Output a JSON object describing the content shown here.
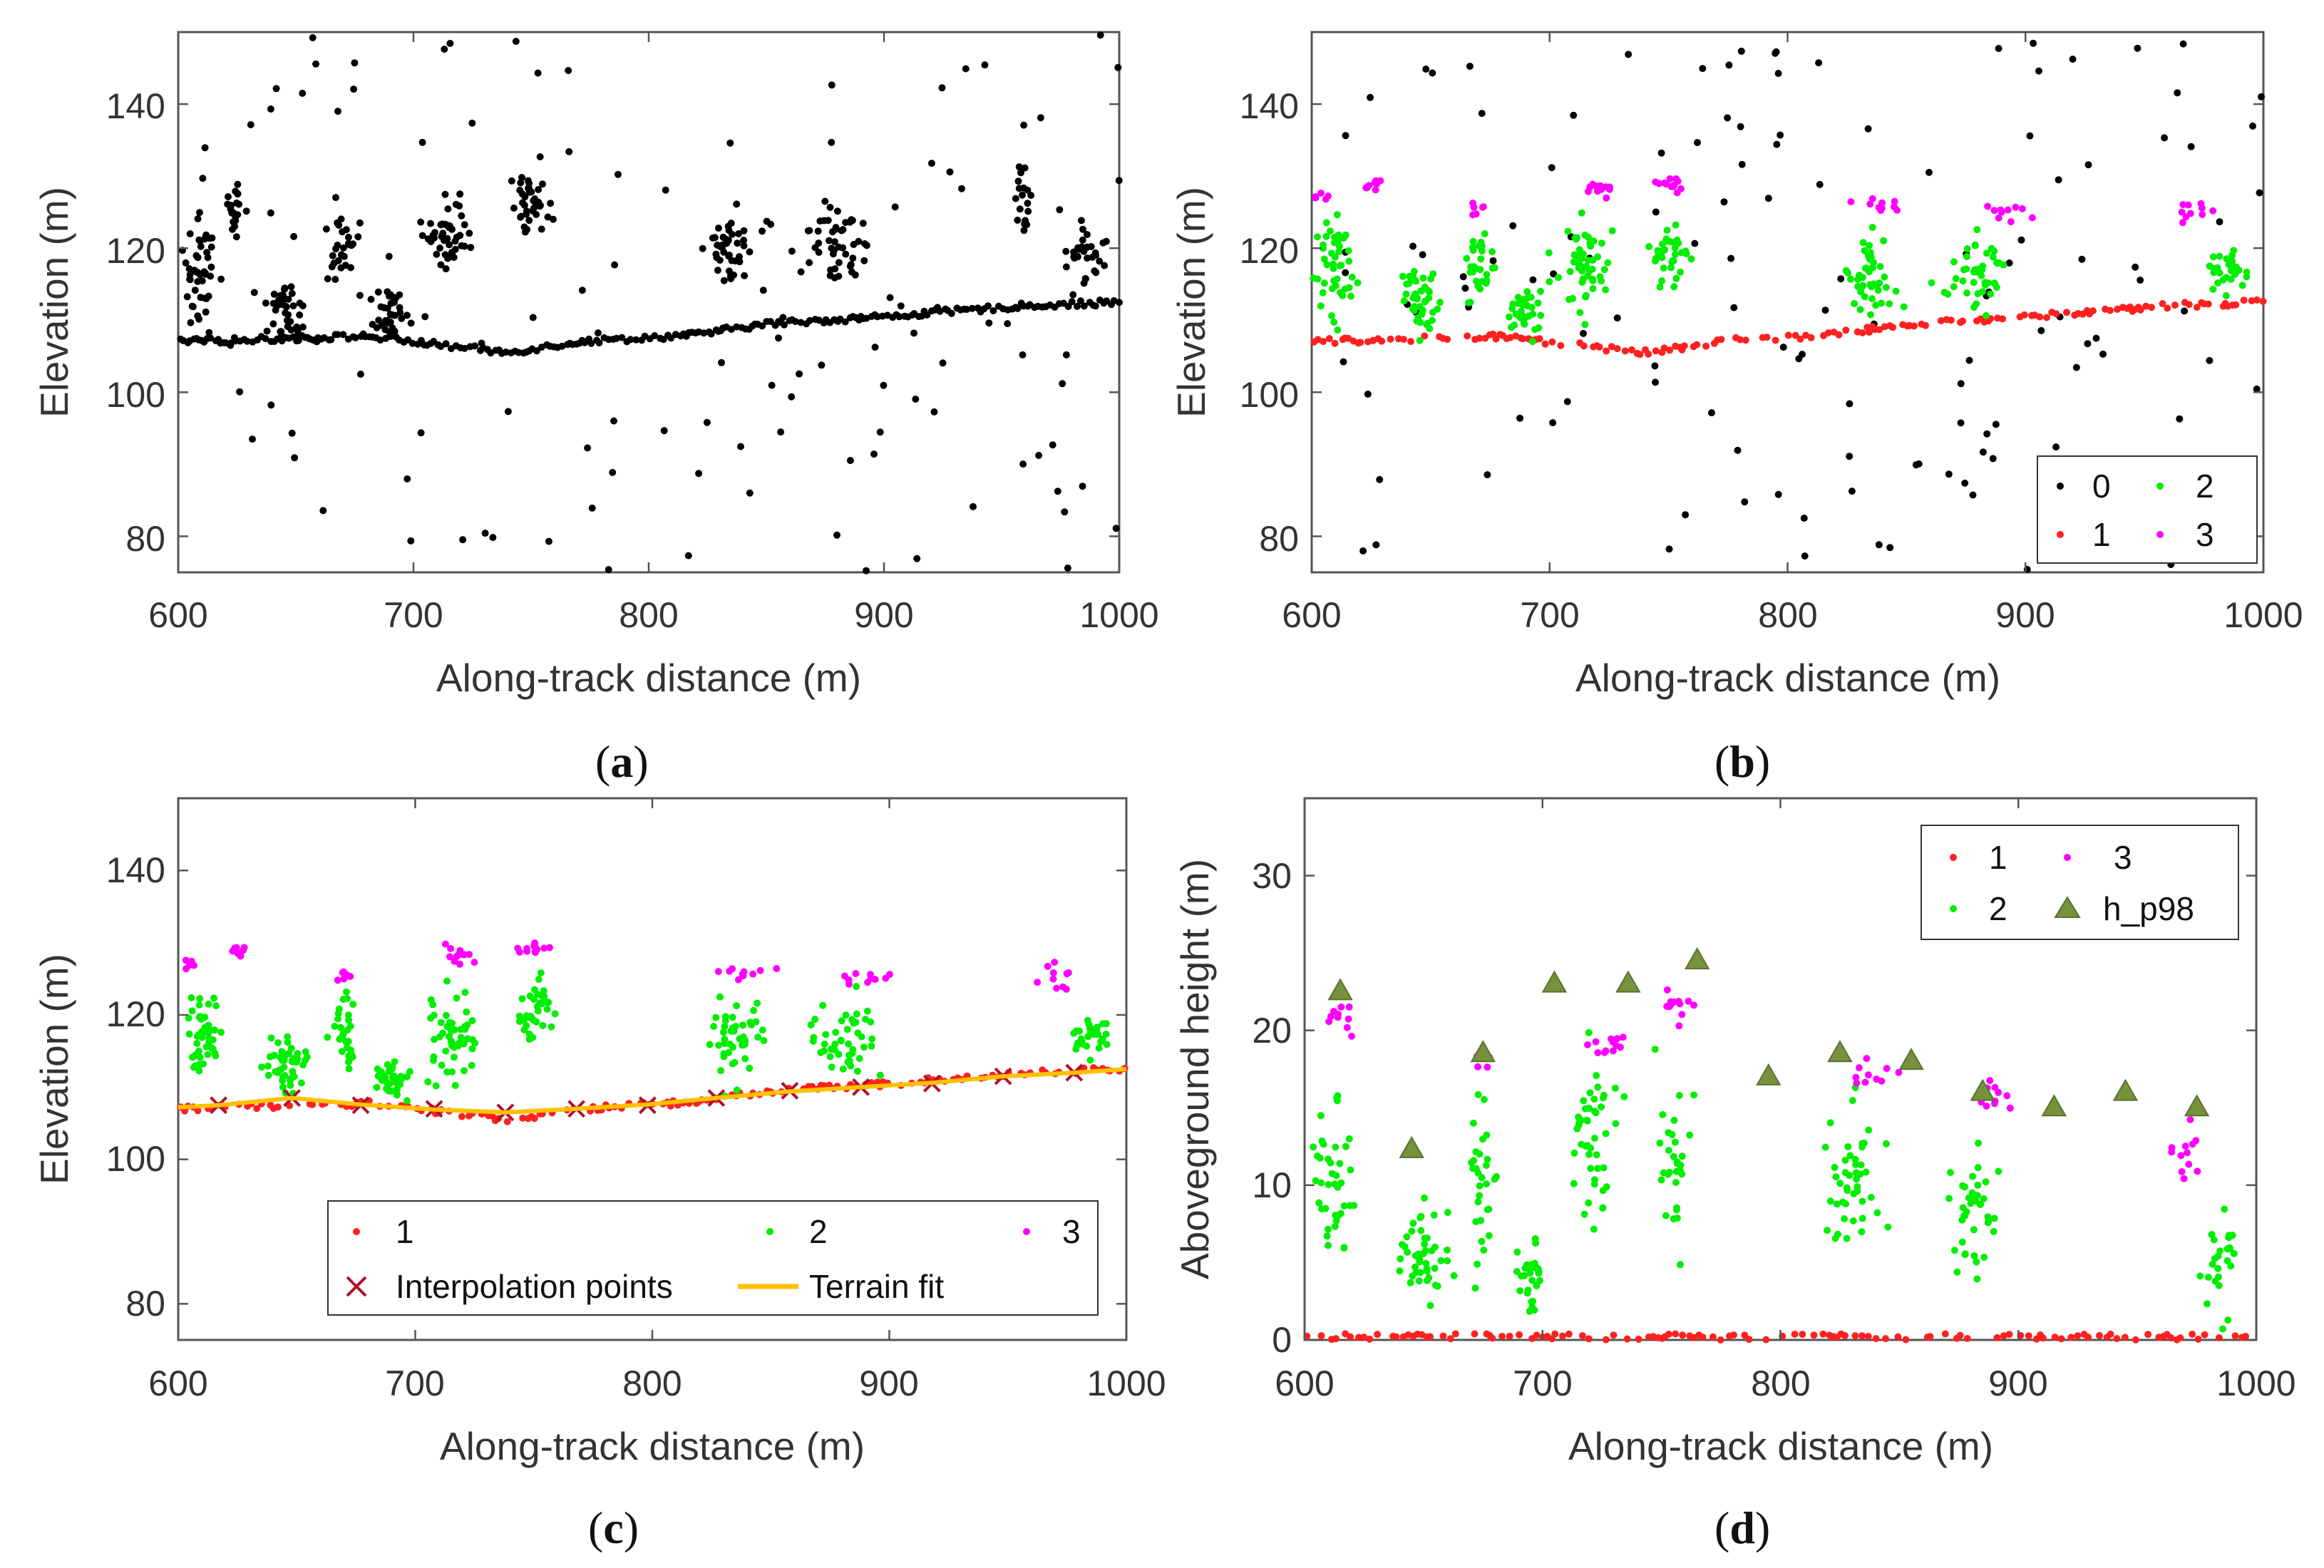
{
  "colors": {
    "class0": "#000000",
    "class1": "#ff2020",
    "class2": "#00ee00",
    "class3": "#ff00ff",
    "interp": "#b0102a",
    "terrain": "#ffc000",
    "hp98": "#76923c"
  },
  "panels": [
    {
      "id": "a",
      "label_open": "(",
      "label": "a",
      "label_close": ")",
      "xlabel": "Along-track distance (m)",
      "ylabel": "Elevation (m)",
      "xticks": [
        "600",
        "700",
        "800",
        "900",
        "1000"
      ],
      "yticks": [
        "80",
        "100",
        "120",
        "140"
      ],
      "xlim": [
        600,
        1000
      ],
      "ylim": [
        75,
        150
      ],
      "legend": null
    },
    {
      "id": "b",
      "label_open": "(",
      "label": "b",
      "label_close": ")",
      "xlabel": "Along-track distance (m)",
      "ylabel": "Elevation (m)",
      "xticks": [
        "600",
        "700",
        "800",
        "900",
        "1000"
      ],
      "yticks": [
        "80",
        "100",
        "120",
        "140"
      ],
      "xlim": [
        600,
        1000
      ],
      "ylim": [
        75,
        150
      ],
      "legend": {
        "entries": [
          "0",
          "1",
          "2",
          "3"
        ]
      }
    },
    {
      "id": "c",
      "label_open": "(",
      "label": "c",
      "label_close": ")",
      "xlabel": "Along-track distance (m)",
      "ylabel": "Elevation (m)",
      "xticks": [
        "600",
        "700",
        "800",
        "900",
        "1000"
      ],
      "yticks": [
        "80",
        "100",
        "120",
        "140"
      ],
      "xlim": [
        600,
        1000
      ],
      "ylim": [
        75,
        150
      ],
      "legend": {
        "entries": [
          "1",
          "2",
          "3",
          "Interpolation points",
          "Terrain fit"
        ]
      }
    },
    {
      "id": "d",
      "label_open": "(",
      "label": "d",
      "label_close": ")",
      "xlabel": "Along-track distance (m)",
      "ylabel": "Aboveground height (m)",
      "xticks": [
        "600",
        "700",
        "800",
        "900",
        "1000"
      ],
      "yticks": [
        "0",
        "10",
        "20",
        "30"
      ],
      "xlim": [
        600,
        1000
      ],
      "ylim": [
        0,
        35
      ],
      "legend": {
        "entries": [
          "1",
          "3",
          "2",
          "h_p98"
        ]
      }
    }
  ],
  "chart_data": [
    {
      "type": "scatter",
      "panel": "a",
      "title": "",
      "xlabel": "Along-track distance (m)",
      "ylabel": "Elevation (m)",
      "xlim": [
        600,
        1000
      ],
      "ylim": [
        75,
        150
      ],
      "series": [
        {
          "name": "photons",
          "cls": 0,
          "ground": [
            [
              600,
              107
            ],
            [
              680,
              107.8
            ],
            [
              700,
              107
            ],
            [
              740,
              105.5
            ],
            [
              770,
              107
            ],
            [
              820,
              108
            ],
            [
              850,
              109.5
            ],
            [
              900,
              110.5
            ],
            [
              960,
              112
            ],
            [
              1000,
              112.5
            ]
          ],
          "clusters": [
            [
              610,
              118,
              7,
              8,
              45
            ],
            [
              625,
              126,
              5,
              4,
              18
            ],
            [
              645,
              112,
              8,
              4,
              40
            ],
            [
              670,
              120,
              6,
              6,
              30
            ],
            [
              690,
              111,
              7,
              3,
              35
            ],
            [
              715,
              122,
              10,
              6,
              45
            ],
            [
              750,
              126,
              7,
              4,
              38
            ],
            [
              835,
              120,
              10,
              5,
              40
            ],
            [
              880,
              120,
              12,
              5,
              42
            ],
            [
              960,
              126,
              4,
              5,
              18
            ],
            [
              985,
              119,
              8,
              4,
              32
            ]
          ],
          "noise_count": 130
        }
      ]
    },
    {
      "type": "scatter",
      "panel": "b",
      "title": "",
      "xlabel": "Along-track distance (m)",
      "ylabel": "Elevation (m)",
      "xlim": [
        600,
        1000
      ],
      "ylim": [
        75,
        150
      ],
      "series": [
        {
          "name": "0",
          "cls": 0,
          "noise_count": 130
        },
        {
          "name": "1",
          "cls": 1,
          "ground": [
            [
              600,
              107
            ],
            [
              680,
              107.8
            ],
            [
              700,
              107
            ],
            [
              740,
              105.5
            ],
            [
              770,
              107
            ],
            [
              820,
              108
            ],
            [
              850,
              109.5
            ],
            [
              900,
              110.5
            ],
            [
              960,
              112
            ],
            [
              1000,
              112.5
            ]
          ]
        },
        {
          "name": "2",
          "cls": 2,
          "clusters": [
            [
              610,
              117,
              7,
              6,
              45
            ],
            [
              645,
              113,
              8,
              4,
              45
            ],
            [
              670,
              118,
              6,
              5,
              30
            ],
            [
              690,
              111,
              7,
              3,
              35
            ],
            [
              715,
              118,
              10,
              6,
              50
            ],
            [
              750,
              120,
              7,
              5,
              35
            ],
            [
              835,
              117,
              10,
              5,
              45
            ],
            [
              880,
              117,
              12,
              5,
              45
            ],
            [
              985,
              117,
              8,
              3,
              30
            ]
          ]
        },
        {
          "name": "3",
          "cls": 3,
          "clusters": [
            [
              605,
              127,
              3,
              1,
              6
            ],
            [
              625,
              129,
              4,
              1,
              8
            ],
            [
              670,
              125.5,
              4,
              1,
              6
            ],
            [
              720,
              128,
              8,
              1.5,
              12
            ],
            [
              750,
              129,
              6,
              1,
              12
            ],
            [
              840,
              126,
              10,
              1.2,
              10
            ],
            [
              890,
              125,
              10,
              1,
              10
            ],
            [
              970,
              125,
              8,
              2,
              10
            ]
          ]
        }
      ]
    },
    {
      "type": "scatter",
      "panel": "c",
      "title": "",
      "xlabel": "Along-track distance (m)",
      "ylabel": "Elevation (m)",
      "xlim": [
        600,
        1000
      ],
      "ylim": [
        75,
        150
      ],
      "series": [
        {
          "name": "1",
          "cls": 1,
          "ground": [
            [
              600,
              107
            ],
            [
              680,
              107.8
            ],
            [
              700,
              107
            ],
            [
              740,
              105.5
            ],
            [
              770,
              107
            ],
            [
              820,
              108
            ],
            [
              850,
              109.5
            ],
            [
              900,
              110.5
            ],
            [
              960,
              112
            ],
            [
              1000,
              112.5
            ]
          ]
        },
        {
          "name": "2",
          "cls": 2,
          "clusters": [
            [
              610,
              117,
              7,
              6,
              45
            ],
            [
              645,
              113,
              8,
              4,
              45
            ],
            [
              670,
              118,
              6,
              5,
              30
            ],
            [
              690,
              111,
              7,
              3,
              35
            ],
            [
              715,
              118,
              10,
              6,
              50
            ],
            [
              750,
              120,
              7,
              5,
              35
            ],
            [
              835,
              117,
              10,
              5,
              45
            ],
            [
              880,
              117,
              12,
              5,
              45
            ],
            [
              985,
              117,
              8,
              3,
              30
            ]
          ]
        },
        {
          "name": "3",
          "cls": 3,
          "clusters": [
            [
              605,
              127,
              3,
              1,
              6
            ],
            [
              625,
              129,
              4,
              1,
              8
            ],
            [
              670,
              125.5,
              4,
              1,
              6
            ],
            [
              720,
              128,
              8,
              1.5,
              12
            ],
            [
              750,
              129,
              6,
              1,
              12
            ],
            [
              840,
              126,
              10,
              1.2,
              10
            ],
            [
              890,
              125,
              10,
              1,
              10
            ],
            [
              970,
              125,
              8,
              2,
              10
            ]
          ]
        },
        {
          "name": "Interpolation points",
          "marker": "x",
          "points": [
            [
              617,
              107.5
            ],
            [
              648,
              108.5
            ],
            [
              677,
              107.5
            ],
            [
              708,
              107
            ],
            [
              738,
              106.5
            ],
            [
              768,
              107
            ],
            [
              798,
              107.5
            ],
            [
              827,
              108.5
            ],
            [
              858,
              109.5
            ],
            [
              888,
              110
            ],
            [
              918,
              110.5
            ],
            [
              948,
              111.5
            ],
            [
              978,
              112
            ]
          ]
        },
        {
          "name": "Terrain fit",
          "line": true,
          "points": [
            [
              600,
              107.2
            ],
            [
              617,
              107.5
            ],
            [
              648,
              108.5
            ],
            [
              677,
              107.6
            ],
            [
              708,
              106.9
            ],
            [
              738,
              106.5
            ],
            [
              768,
              107
            ],
            [
              798,
              107.6
            ],
            [
              827,
              108.5
            ],
            [
              858,
              109.4
            ],
            [
              888,
              110
            ],
            [
              918,
              110.6
            ],
            [
              948,
              111.5
            ],
            [
              978,
              112
            ],
            [
              1000,
              112.5
            ]
          ]
        }
      ]
    },
    {
      "type": "scatter",
      "panel": "d",
      "title": "",
      "xlabel": "Along-track distance (m)",
      "ylabel": "Aboveground height (m)",
      "xlim": [
        600,
        1000
      ],
      "ylim": [
        0,
        35
      ],
      "series": [
        {
          "name": "1",
          "cls": 1,
          "ground": [
            [
              600,
              0.2
            ],
            [
              1000,
              0.2
            ]
          ]
        },
        {
          "name": "2",
          "cls": 2,
          "clusters": [
            [
              612,
              10,
              8,
              6,
              40
            ],
            [
              650,
              5,
              10,
              3,
              45
            ],
            [
              675,
              10,
              6,
              5,
              30
            ],
            [
              695,
              4,
              6,
              2,
              30
            ],
            [
              720,
              13,
              10,
              5,
              45
            ],
            [
              755,
              12,
              8,
              5,
              30
            ],
            [
              830,
              10,
              12,
              5,
              45
            ],
            [
              880,
              8,
              12,
              4,
              40
            ],
            [
              985,
              5,
              8,
              3,
              25
            ]
          ]
        },
        {
          "name": "3",
          "cls": 3,
          "clusters": [
            [
              615,
              21,
              5,
              1.2,
              10
            ],
            [
              675,
              18.5,
              4,
              0.8,
              6
            ],
            [
              725,
              19,
              8,
              1.2,
              12
            ],
            [
              755,
              21.5,
              6,
              1,
              12
            ],
            [
              840,
              17,
              10,
              1,
              10
            ],
            [
              890,
              15.5,
              10,
              1,
              10
            ],
            [
              970,
              12,
              8,
              2,
              12
            ]
          ]
        },
        {
          "name": "h_p98",
          "marker": "triangle",
          "points": [
            [
              615,
              22.5
            ],
            [
              645,
              12.3
            ],
            [
              675,
              18.5
            ],
            [
              705,
              23
            ],
            [
              736,
              23
            ],
            [
              765,
              24.5
            ],
            [
              795,
              17
            ],
            [
              825,
              18.5
            ],
            [
              855,
              18
            ],
            [
              885,
              16
            ],
            [
              915,
              15
            ],
            [
              945,
              16
            ],
            [
              975,
              15
            ]
          ]
        }
      ]
    }
  ]
}
